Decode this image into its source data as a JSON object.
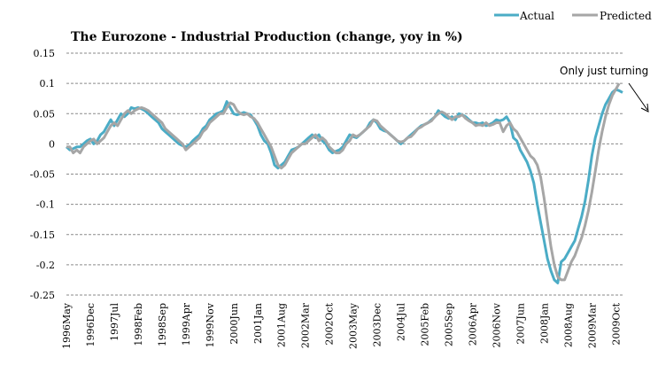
{
  "chart_data": {
    "type": "line",
    "title": "The Eurozone  - Industrial Production (change, yoy in %)",
    "xlabel": "",
    "ylabel": "",
    "ylim": [
      -0.25,
      0.15
    ],
    "y_ticks": [
      0.15,
      0.1,
      0.05,
      0,
      -0.05,
      -0.1,
      -0.15,
      -0.2,
      -0.25
    ],
    "y_tick_labels": [
      "0.15",
      "0.1",
      "0.05",
      "0",
      "-0.05",
      "-0.1",
      "-0.15",
      "-0.2",
      "-0.25"
    ],
    "grid": true,
    "x_start": "1996May",
    "x_end": "2010Mar",
    "x_tick_labels": [
      "1996May",
      "1996Dec",
      "1997Jul",
      "1998Feb",
      "1998Sep",
      "1999Apr",
      "1999Nov",
      "2000Jun",
      "2001Jan",
      "2001Aug",
      "2002Mar",
      "2002Oct",
      "2003May",
      "2003Dec",
      "2004Jul",
      "2005Feb",
      "2005Sep",
      "2006Apr",
      "2006Nov",
      "2007Jun",
      "2008Jan",
      "2008Aug",
      "2009Mar",
      "2009Oct"
    ],
    "x_tick_interval_months": 7,
    "legend": {
      "position": "top-right",
      "entries": [
        "Actual",
        "Predicted"
      ]
    },
    "annotation": {
      "text": "Only just turning",
      "arrow": "down-right"
    },
    "series": [
      {
        "name": "Actual",
        "color": "#4bacc6",
        "values": [
          -0.005,
          -0.01,
          -0.008,
          -0.005,
          -0.005,
          0.0,
          0.005,
          0.008,
          0.0,
          0.005,
          0.015,
          0.02,
          0.03,
          0.04,
          0.03,
          0.04,
          0.05,
          0.045,
          0.05,
          0.06,
          0.058,
          0.06,
          0.058,
          0.055,
          0.05,
          0.045,
          0.04,
          0.035,
          0.025,
          0.02,
          0.015,
          0.01,
          0.005,
          0.0,
          -0.003,
          -0.005,
          -0.002,
          0.005,
          0.01,
          0.015,
          0.025,
          0.03,
          0.04,
          0.045,
          0.05,
          0.052,
          0.055,
          0.07,
          0.06,
          0.05,
          0.048,
          0.05,
          0.052,
          0.05,
          0.048,
          0.04,
          0.03,
          0.015,
          0.005,
          0.0,
          -0.015,
          -0.035,
          -0.04,
          -0.035,
          -0.03,
          -0.02,
          -0.01,
          -0.008,
          -0.005,
          0.0,
          0.005,
          0.01,
          0.015,
          0.01,
          0.015,
          0.005,
          0.0,
          -0.01,
          -0.015,
          -0.012,
          -0.01,
          -0.005,
          0.005,
          0.015,
          0.012,
          0.01,
          0.015,
          0.02,
          0.025,
          0.035,
          0.04,
          0.035,
          0.025,
          0.022,
          0.02,
          0.015,
          0.01,
          0.005,
          0.0,
          0.005,
          0.01,
          0.015,
          0.02,
          0.025,
          0.03,
          0.032,
          0.035,
          0.04,
          0.045,
          0.055,
          0.05,
          0.045,
          0.042,
          0.045,
          0.04,
          0.05,
          0.048,
          0.045,
          0.04,
          0.035,
          0.035,
          0.033,
          0.035,
          0.03,
          0.032,
          0.035,
          0.04,
          0.038,
          0.04,
          0.045,
          0.035,
          0.01,
          0.005,
          -0.01,
          -0.02,
          -0.03,
          -0.045,
          -0.065,
          -0.1,
          -0.13,
          -0.16,
          -0.19,
          -0.21,
          -0.225,
          -0.23,
          -0.195,
          -0.19,
          -0.18,
          -0.17,
          -0.16,
          -0.14,
          -0.12,
          -0.095,
          -0.06,
          -0.02,
          0.01,
          0.03,
          0.05,
          0.065,
          0.075,
          0.085,
          0.09,
          0.088,
          0.085
        ]
      },
      {
        "name": "Predicted",
        "color": "#a6a6a6",
        "values": [
          -0.005,
          -0.005,
          -0.015,
          -0.01,
          -0.015,
          -0.005,
          0.0,
          0.005,
          0.008,
          0.0,
          0.005,
          0.01,
          0.02,
          0.03,
          0.035,
          0.03,
          0.04,
          0.05,
          0.055,
          0.05,
          0.055,
          0.058,
          0.06,
          0.058,
          0.055,
          0.05,
          0.045,
          0.04,
          0.035,
          0.025,
          0.02,
          0.015,
          0.01,
          0.005,
          0.0,
          -0.01,
          -0.005,
          0.0,
          0.005,
          0.01,
          0.02,
          0.025,
          0.035,
          0.04,
          0.045,
          0.05,
          0.05,
          0.06,
          0.068,
          0.065,
          0.055,
          0.05,
          0.048,
          0.05,
          0.045,
          0.042,
          0.035,
          0.025,
          0.015,
          0.005,
          -0.005,
          -0.02,
          -0.035,
          -0.04,
          -0.035,
          -0.025,
          -0.015,
          -0.01,
          -0.005,
          0.0,
          0.0,
          0.005,
          0.01,
          0.015,
          0.005,
          0.01,
          0.005,
          -0.005,
          -0.01,
          -0.015,
          -0.015,
          -0.01,
          0.0,
          0.005,
          0.015,
          0.012,
          0.015,
          0.02,
          0.025,
          0.03,
          0.04,
          0.038,
          0.03,
          0.025,
          0.02,
          0.015,
          0.01,
          0.005,
          0.003,
          0.005,
          0.01,
          0.012,
          0.018,
          0.025,
          0.028,
          0.032,
          0.035,
          0.038,
          0.045,
          0.05,
          0.053,
          0.05,
          0.045,
          0.04,
          0.045,
          0.045,
          0.048,
          0.042,
          0.038,
          0.035,
          0.03,
          0.032,
          0.03,
          0.035,
          0.03,
          0.032,
          0.035,
          0.035,
          0.02,
          0.03,
          0.035,
          0.025,
          0.02,
          0.01,
          0.0,
          -0.01,
          -0.02,
          -0.025,
          -0.035,
          -0.055,
          -0.09,
          -0.13,
          -0.17,
          -0.2,
          -0.22,
          -0.225,
          -0.225,
          -0.21,
          -0.195,
          -0.185,
          -0.17,
          -0.155,
          -0.135,
          -0.11,
          -0.08,
          -0.045,
          -0.01,
          0.02,
          0.045,
          0.065,
          0.08,
          0.09,
          0.1
        ]
      }
    ]
  }
}
